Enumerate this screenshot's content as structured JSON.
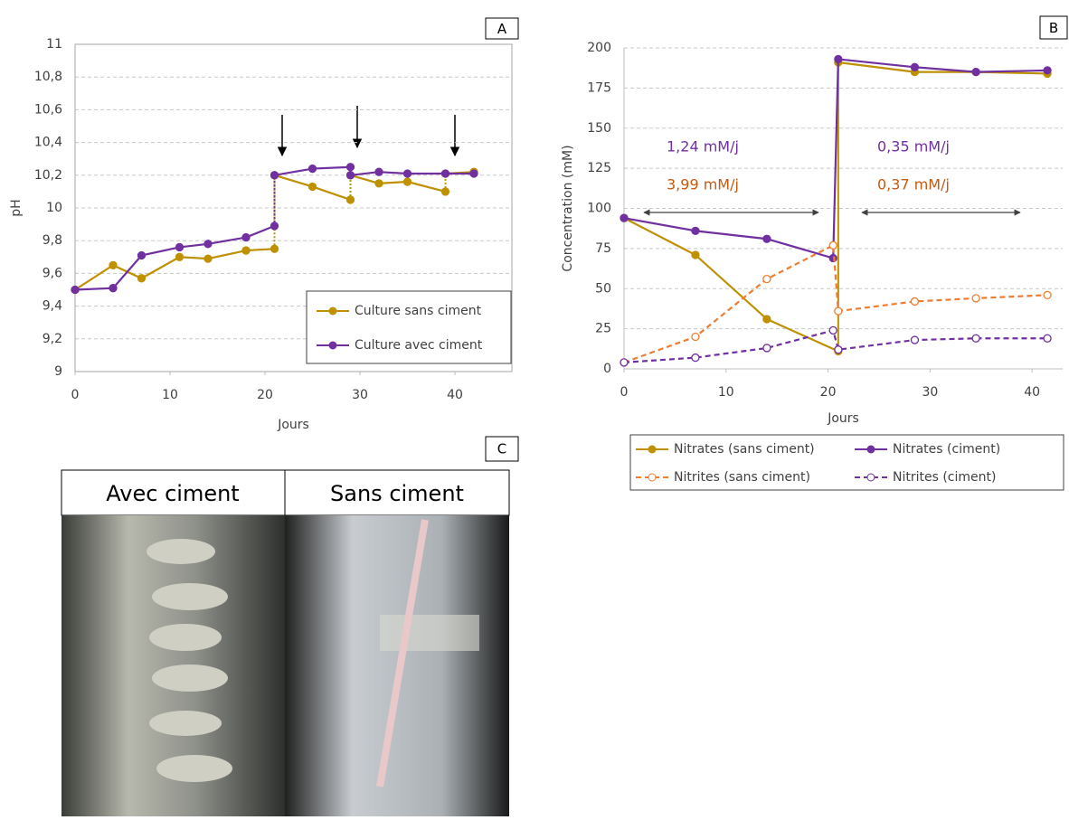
{
  "chart_data": [
    {
      "type": "line",
      "panel_label": "A",
      "x_label": "Jours",
      "y_label": "pH",
      "xlim": [
        0,
        46
      ],
      "xticks": [
        0,
        10,
        20,
        30,
        40
      ],
      "ylim": [
        9,
        11
      ],
      "yticks": [
        9,
        {
          "value": 9.2,
          "label": "9,2"
        },
        {
          "value": 9.4,
          "label": "9,4"
        },
        {
          "value": 9.6,
          "label": "9,6"
        },
        {
          "value": 9.8,
          "label": "9,8"
        },
        10,
        {
          "value": 10.2,
          "label": "10,2"
        },
        {
          "value": 10.4,
          "label": "10,4"
        },
        {
          "value": 10.6,
          "label": "10,6"
        },
        {
          "value": 10.8,
          "label": "10,8"
        },
        11
      ],
      "grid": true,
      "jump_line": "dotted",
      "legend": "lower right",
      "series": [
        {
          "name": "Culture sans ciment",
          "color": "#bf9000",
          "dashed": false,
          "marker": "filled",
          "x": [
            0,
            4,
            7,
            11,
            14,
            18,
            21,
            21,
            25,
            29,
            29,
            32,
            35,
            39,
            39,
            42
          ],
          "values": [
            9.5,
            9.65,
            9.57,
            9.7,
            9.69,
            9.74,
            9.75,
            10.2,
            10.13,
            10.05,
            10.2,
            10.15,
            10.16,
            10.1,
            10.21,
            10.22
          ]
        },
        {
          "name": "Culture avec ciment",
          "color": "#7030a0",
          "dashed": false,
          "marker": "filled",
          "x": [
            0,
            4,
            7,
            11,
            14,
            18,
            21,
            21,
            25,
            29,
            29,
            32,
            35,
            39,
            42
          ],
          "values": [
            9.5,
            9.51,
            9.71,
            9.76,
            9.78,
            9.82,
            9.89,
            10.2,
            10.24,
            10.25,
            10.2,
            10.22,
            10.21,
            10.21,
            10.21
          ]
        }
      ]
    },
    {
      "type": "line",
      "panel_label": "B",
      "x_label": "Jours",
      "y_label": "Concentration (mM)",
      "xlim": [
        0,
        43
      ],
      "xticks": [
        0,
        10,
        20,
        30,
        40
      ],
      "ylim": [
        0,
        200
      ],
      "yticks": [
        0,
        25,
        50,
        75,
        100,
        125,
        150,
        175,
        200
      ],
      "grid": true,
      "jump_line": "solid",
      "legend": "below",
      "annotations": [
        {
          "text": "1,24 mM/j",
          "color": "#7030a0"
        },
        {
          "text": "3,99 mM/j",
          "color": "#c55a11"
        },
        {
          "text": "0,35 mM/j",
          "color": "#7030a0"
        },
        {
          "text": "0,37 mM/j",
          "color": "#c55a11"
        }
      ],
      "series": [
        {
          "name": "Nitrates (sans ciment)",
          "color": "#bf9000",
          "dashed": false,
          "marker": "filled",
          "x": [
            0,
            7,
            14,
            21,
            21,
            28.5,
            34.5,
            41.5
          ],
          "values": [
            94,
            71,
            31,
            11,
            191,
            185,
            185,
            184
          ]
        },
        {
          "name": "Nitrates (ciment)",
          "color": "#7030a0",
          "dashed": false,
          "marker": "filled",
          "x": [
            0,
            7,
            14,
            20.5,
            21,
            28.5,
            34.5,
            41.5
          ],
          "values": [
            94,
            86,
            81,
            69,
            193,
            188,
            185,
            186
          ]
        },
        {
          "name": "Nitrites (sans ciment)",
          "color": "#ed7d31",
          "dashed": true,
          "marker": "open",
          "x": [
            0,
            7,
            14,
            20.5,
            21,
            28.5,
            34.5,
            41.5
          ],
          "values": [
            4,
            20,
            56,
            77,
            36,
            42,
            44,
            46
          ]
        },
        {
          "name": "Nitrites (ciment)",
          "color": "#7030a0",
          "dashed": true,
          "marker": "open",
          "x": [
            0,
            7,
            14,
            20.5,
            21,
            28.5,
            34.5,
            41.5
          ],
          "values": [
            4,
            7,
            13,
            24,
            12,
            18,
            19,
            19
          ]
        }
      ]
    }
  ],
  "photo": {
    "panel_label": "C",
    "captions": [
      "Avec ciment",
      "Sans ciment"
    ]
  }
}
